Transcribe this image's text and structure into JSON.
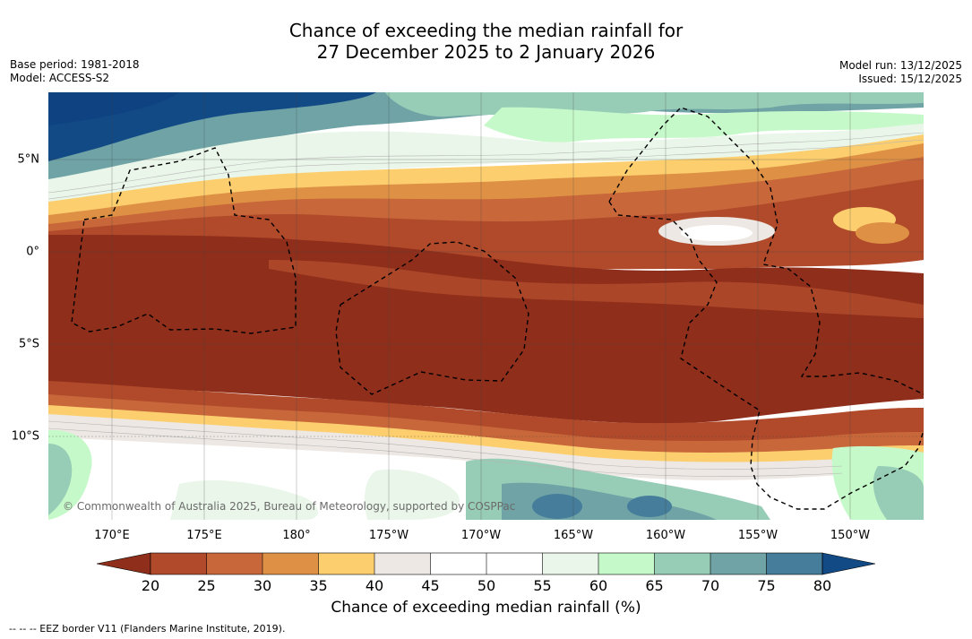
{
  "header": {
    "title_line1": "Chance of exceeding the median rainfall for",
    "title_line2": "27 December 2025 to 2 January 2026",
    "base_period": "Base period: 1981-2018",
    "model": "Model: ACCESS-S2",
    "model_run": "Model run: 13/12/2025",
    "issued": "Issued: 15/12/2025"
  },
  "map": {
    "lon_labels": [
      "170°E",
      "175°E",
      "180°",
      "175°W",
      "170°W",
      "165°W",
      "160°W",
      "155°W",
      "150°W"
    ],
    "lat_labels": [
      "5°N",
      "0°",
      "5°S",
      "10°S"
    ],
    "credit": "© Commonwealth of Australia 2025, Bureau of Meteorology, supported by COSPPac"
  },
  "legend": {
    "ticks": [
      "20",
      "25",
      "30",
      "35",
      "40",
      "45",
      "50",
      "55",
      "60",
      "65",
      "70",
      "75",
      "80"
    ],
    "colors": [
      "#8f2e1a",
      "#b04a2b",
      "#c8673a",
      "#de9144",
      "#fcce6e",
      "#ede8e3",
      "#ffffff",
      "#ffffff",
      "#e9f6e9",
      "#c6f9c9",
      "#97cdb6",
      "#6fa3a5",
      "#457d9b",
      "#124a86"
    ],
    "title": "Chance of exceeding median rainfall (%)"
  },
  "footer": {
    "eez_note": "-- -- -- EEZ border V11 (Flanders Marine Institute, 2019)."
  }
}
